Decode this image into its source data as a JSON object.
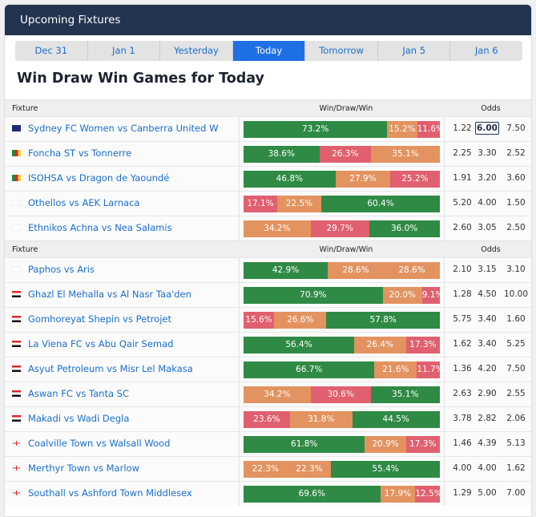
{
  "header": {
    "title": "Upcoming Fixtures"
  },
  "tabs": [
    {
      "label": "Dec 31"
    },
    {
      "label": "Jan 1"
    },
    {
      "label": "Yesterday"
    },
    {
      "label": "Today",
      "active": true
    },
    {
      "label": "Tomorrow"
    },
    {
      "label": "Jan 5"
    },
    {
      "label": "Jan 6"
    }
  ],
  "page_title": "Win Draw Win Games for Today",
  "columns": {
    "fixture": "Fixture",
    "wdw": "Win/Draw/Win",
    "odds": "Odds"
  },
  "colors": {
    "green": "#2f8a45",
    "orange": "#e3935f",
    "red": "#e0606f",
    "link": "#1a6fc9",
    "header": "#22344f",
    "active_tab": "#1f6fe5"
  },
  "groups": [
    {
      "rows": [
        {
          "flag": "australia",
          "fixture": "Sydney FC Women vs Canberra United W",
          "segs": [
            [
              "73.2%",
              73.2,
              "green"
            ],
            [
              "15.2%",
              15.2,
              "orange"
            ],
            [
              "11.6%",
              11.6,
              "red"
            ]
          ],
          "odds": [
            "1.22",
            "6.00",
            "7.50"
          ],
          "hl": 1
        },
        {
          "flag": "cameroon",
          "fixture": "Foncha ST vs Tonnerre",
          "segs": [
            [
              "38.6%",
              38.6,
              "green"
            ],
            [
              "26.3%",
              26.3,
              "red"
            ],
            [
              "35.1%",
              35.1,
              "orange"
            ]
          ],
          "odds": [
            "2.25",
            "3.30",
            "2.52"
          ]
        },
        {
          "flag": "cameroon",
          "fixture": "ISOHSA vs Dragon de Yaoundé",
          "segs": [
            [
              "46.8%",
              46.8,
              "green"
            ],
            [
              "27.9%",
              27.9,
              "orange"
            ],
            [
              "25.2%",
              25.2,
              "red"
            ]
          ],
          "odds": [
            "1.91",
            "3.20",
            "3.60"
          ]
        },
        {
          "flag": "cyprus",
          "fixture": "Othellos vs AEK Larnaca",
          "segs": [
            [
              "17.1%",
              17.1,
              "red"
            ],
            [
              "22.5%",
              22.5,
              "orange"
            ],
            [
              "60.4%",
              60.4,
              "green"
            ]
          ],
          "odds": [
            "5.20",
            "4.00",
            "1.50"
          ]
        },
        {
          "flag": "cyprus",
          "fixture": "Ethnikos Achna vs Nea Salamis",
          "segs": [
            [
              "34.2%",
              34.2,
              "orange"
            ],
            [
              "29.7%",
              29.7,
              "red"
            ],
            [
              "36.0%",
              36.0,
              "green"
            ]
          ],
          "odds": [
            "2.60",
            "3.05",
            "2.50"
          ]
        }
      ]
    },
    {
      "rows": [
        {
          "flag": "cyprus",
          "fixture": "Paphos vs Aris",
          "segs": [
            [
              "42.9%",
              42.9,
              "green"
            ],
            [
              "28.6%",
              28.6,
              "orange"
            ],
            [
              "28.6%",
              28.6,
              "orange"
            ]
          ],
          "odds": [
            "2.10",
            "3.15",
            "3.10"
          ]
        },
        {
          "flag": "egypt",
          "fixture": "Ghazl El Mehalla vs Al Nasr Taa'den",
          "segs": [
            [
              "70.9%",
              70.9,
              "green"
            ],
            [
              "20.0%",
              20.0,
              "orange"
            ],
            [
              "9.1%",
              9.1,
              "red"
            ]
          ],
          "odds": [
            "1.28",
            "4.50",
            "10.00"
          ]
        },
        {
          "flag": "egypt",
          "fixture": "Gomhoreyat Shepin vs Petrojet",
          "segs": [
            [
              "15.6%",
              15.6,
              "red"
            ],
            [
              "26.6%",
              26.6,
              "orange"
            ],
            [
              "57.8%",
              57.8,
              "green"
            ]
          ],
          "odds": [
            "5.75",
            "3.40",
            "1.60"
          ]
        },
        {
          "flag": "egypt",
          "fixture": "La Viena FC vs Abu Qair Semad",
          "segs": [
            [
              "56.4%",
              56.4,
              "green"
            ],
            [
              "26.4%",
              26.4,
              "orange"
            ],
            [
              "17.3%",
              17.3,
              "red"
            ]
          ],
          "odds": [
            "1.62",
            "3.40",
            "5.25"
          ]
        },
        {
          "flag": "egypt",
          "fixture": "Asyut Petroleum vs Misr Lel Makasa",
          "segs": [
            [
              "66.7%",
              66.7,
              "green"
            ],
            [
              "21.6%",
              21.6,
              "orange"
            ],
            [
              "11.7%",
              11.7,
              "red"
            ]
          ],
          "odds": [
            "1.36",
            "4.20",
            "7.50"
          ]
        },
        {
          "flag": "egypt",
          "fixture": "Aswan FC vs Tanta SC",
          "segs": [
            [
              "34.2%",
              34.2,
              "orange"
            ],
            [
              "30.6%",
              30.6,
              "red"
            ],
            [
              "35.1%",
              35.1,
              "green"
            ]
          ],
          "odds": [
            "2.63",
            "2.90",
            "2.55"
          ]
        },
        {
          "flag": "egypt",
          "fixture": "Makadi vs Wadi Degla",
          "segs": [
            [
              "23.6%",
              23.6,
              "red"
            ],
            [
              "31.8%",
              31.8,
              "orange"
            ],
            [
              "44.5%",
              44.5,
              "green"
            ]
          ],
          "odds": [
            "3.78",
            "2.82",
            "2.06"
          ]
        },
        {
          "flag": "england",
          "fixture": "Coalville Town vs Walsall Wood",
          "segs": [
            [
              "61.8%",
              61.8,
              "green"
            ],
            [
              "20.9%",
              20.9,
              "orange"
            ],
            [
              "17.3%",
              17.3,
              "red"
            ]
          ],
          "odds": [
            "1.46",
            "4.39",
            "5.13"
          ]
        },
        {
          "flag": "england",
          "fixture": "Merthyr Town vs Marlow",
          "segs": [
            [
              "22.3%",
              22.3,
              "orange"
            ],
            [
              "22.3%",
              22.3,
              "orange"
            ],
            [
              "55.4%",
              55.4,
              "green"
            ]
          ],
          "odds": [
            "4.00",
            "4.00",
            "1.62"
          ]
        },
        {
          "flag": "england",
          "fixture": "Southall vs Ashford Town Middlesex",
          "segs": [
            [
              "69.6%",
              69.6,
              "green"
            ],
            [
              "17.9%",
              17.9,
              "orange"
            ],
            [
              "12.5%",
              12.5,
              "red"
            ]
          ],
          "odds": [
            "1.29",
            "5.00",
            "7.00"
          ]
        }
      ]
    }
  ]
}
